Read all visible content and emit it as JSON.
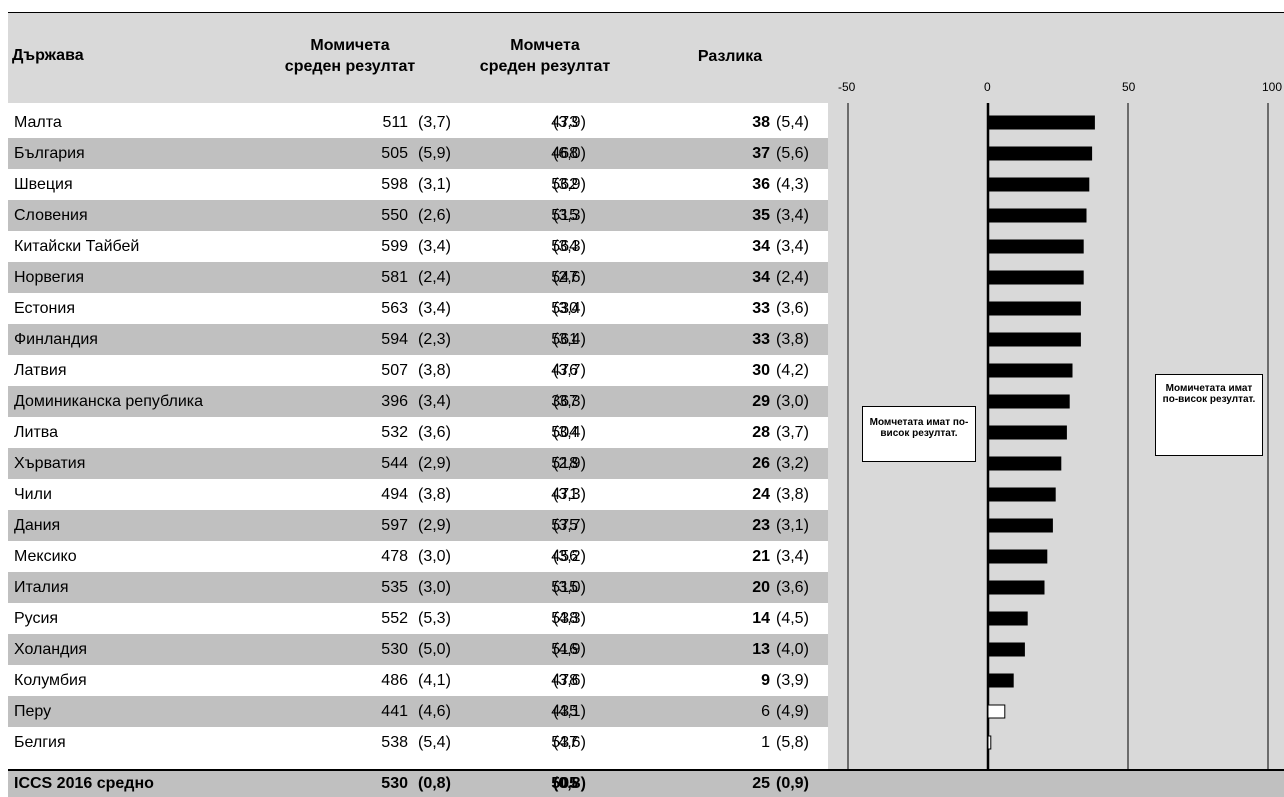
{
  "headers": {
    "country": "Държава",
    "girls_line1": "Момичета",
    "girls_line2": "среден резултат",
    "boys_line1": "Момчета",
    "boys_line2": "среден резултат",
    "difference": "Разлика"
  },
  "axis_ticks": [
    "-50",
    "0",
    "50",
    "100"
  ],
  "notes": {
    "boys_higher": "Момчетата имат по-висок резултат.",
    "girls_higher": "Момичетата имат по-висок резултат."
  },
  "rows": [
    {
      "country": "Малта",
      "girls": "511",
      "girls_se": "(3,7)",
      "boys": "473",
      "boys_se": "(3,9)",
      "diff": "38",
      "diff_se": "(5,4)",
      "significant": true
    },
    {
      "country": "България",
      "girls": "505",
      "girls_se": "(5,9)",
      "boys": "468",
      "boys_se": "(6,0)",
      "diff": "37",
      "diff_se": "(5,6)",
      "significant": true
    },
    {
      "country": "Швеция",
      "girls": "598",
      "girls_se": "(3,1)",
      "boys": "562",
      "boys_se": "(3,9)",
      "diff": "36",
      "diff_se": "(4,3)",
      "significant": true
    },
    {
      "country": "Словения",
      "girls": "550",
      "girls_se": "(2,6)",
      "boys": "515",
      "boys_se": "(3,3)",
      "diff": "35",
      "diff_se": "(3,4)",
      "significant": true
    },
    {
      "country": "Китайски Тайбей",
      "girls": "599",
      "girls_se": "(3,4)",
      "boys": "564",
      "boys_se": "(3,3)",
      "diff": "34",
      "diff_se": "(3,4)",
      "significant": true
    },
    {
      "country": "Норвегия",
      "girls": "581",
      "girls_se": "(2,4)",
      "boys": "547",
      "boys_se": "(2,6)",
      "diff": "34",
      "diff_se": "(2,4)",
      "significant": true
    },
    {
      "country": "Естония",
      "girls": "563",
      "girls_se": "(3,4)",
      "boys": "530",
      "boys_se": "(3,4)",
      "diff": "33",
      "diff_se": "(3,6)",
      "significant": true
    },
    {
      "country": "Финландия",
      "girls": "594",
      "girls_se": "(2,3)",
      "boys": "561",
      "boys_se": "(3,4)",
      "diff": "33",
      "diff_se": "(3,8)",
      "significant": true
    },
    {
      "country": "Латвия",
      "girls": "507",
      "girls_se": "(3,8)",
      "boys": "476",
      "boys_se": "(3,7)",
      "diff": "30",
      "diff_se": "(4,2)",
      "significant": true
    },
    {
      "country": "Доминиканска република",
      "girls": "396",
      "girls_se": "(3,4)",
      "boys": "367",
      "boys_se": "(3,3)",
      "diff": "29",
      "diff_se": "(3,0)",
      "significant": true
    },
    {
      "country": "Литва",
      "girls": "532",
      "girls_se": "(3,6)",
      "boys": "504",
      "boys_se": "(3,4)",
      "diff": "28",
      "diff_se": "(3,7)",
      "significant": true
    },
    {
      "country": "Хърватия",
      "girls": "544",
      "girls_se": "(2,9)",
      "boys": "518",
      "boys_se": "(2,9)",
      "diff": "26",
      "diff_se": "(3,2)",
      "significant": true
    },
    {
      "country": "Чили",
      "girls": "494",
      "girls_se": "(3,8)",
      "boys": "471",
      "boys_se": "(3,3)",
      "diff": "24",
      "diff_se": "(3,8)",
      "significant": true
    },
    {
      "country": "Дания",
      "girls": "597",
      "girls_se": "(2,9)",
      "boys": "575",
      "boys_se": "(3,7)",
      "diff": "23",
      "diff_se": "(3,1)",
      "significant": true
    },
    {
      "country": "Мексико",
      "girls": "478",
      "girls_se": "(3,0)",
      "boys": "456",
      "boys_se": "(3,2)",
      "diff": "21",
      "diff_se": "(3,4)",
      "significant": true
    },
    {
      "country": "Италия",
      "girls": "535",
      "girls_se": "(3,0)",
      "boys": "515",
      "boys_se": "(3,0)",
      "diff": "20",
      "diff_se": "(3,6)",
      "significant": true
    },
    {
      "country": "Русия",
      "girls": "552",
      "girls_se": "(5,3)",
      "boys": "538",
      "boys_se": "(4,3)",
      "diff": "14",
      "diff_se": "(4,5)",
      "significant": true
    },
    {
      "country": "Холандия",
      "girls": "530",
      "girls_se": "(5,0)",
      "boys": "516",
      "boys_se": "(4,9)",
      "diff": "13",
      "diff_se": "(4,0)",
      "significant": true
    },
    {
      "country": "Колумбия",
      "girls": "486",
      "girls_se": "(4,1)",
      "boys": "478",
      "boys_se": "(3,6)",
      "diff": "9",
      "diff_se": "(3,9)",
      "significant": true
    },
    {
      "country": "Перу",
      "girls": "441",
      "girls_se": "(4,6)",
      "boys": "435",
      "boys_se": "(4,1)",
      "diff": "6",
      "diff_se": "(4,9)",
      "significant": false
    },
    {
      "country": "Белгия",
      "girls": "538",
      "girls_se": "(5,4)",
      "boys": "537",
      "boys_se": "(4,6)",
      "diff": "1",
      "diff_se": "(5,8)",
      "significant": false
    }
  ],
  "total": {
    "country": "ICCS 2016 средно",
    "girls": "530",
    "girls_se": "(0,8)",
    "boys": "505",
    "boys_se": "(0,8)",
    "diff": "25",
    "diff_se": "(0,9)"
  },
  "colors": {
    "header_band": "#d9d9d9",
    "shade_row": "#c0c0c0",
    "chart_bg": "#d9d9d9",
    "bar_significant": "#000000",
    "bar_nonsignificant": "#ffffff"
  },
  "chart_data": {
    "type": "bar",
    "orientation": "horizontal",
    "categories": [
      "Малта",
      "България",
      "Швеция",
      "Словения",
      "Китайски Тайбей",
      "Норвегия",
      "Естония",
      "Финландия",
      "Латвия",
      "Доминиканска република",
      "Литва",
      "Хърватия",
      "Чили",
      "Дания",
      "Мексико",
      "Италия",
      "Русия",
      "Холандия",
      "Колумбия",
      "Перу",
      "Белгия"
    ],
    "values": [
      38,
      37,
      36,
      35,
      34,
      34,
      33,
      33,
      30,
      29,
      28,
      26,
      24,
      23,
      21,
      20,
      14,
      13,
      9,
      6,
      1
    ],
    "significant": [
      true,
      true,
      true,
      true,
      true,
      true,
      true,
      true,
      true,
      true,
      true,
      true,
      true,
      true,
      true,
      true,
      true,
      true,
      true,
      false,
      false
    ],
    "xlim": [
      -50,
      100
    ],
    "xticks": [
      -50,
      0,
      50,
      100
    ],
    "grid": "vertical lines at -50, 0, 50, 100"
  }
}
